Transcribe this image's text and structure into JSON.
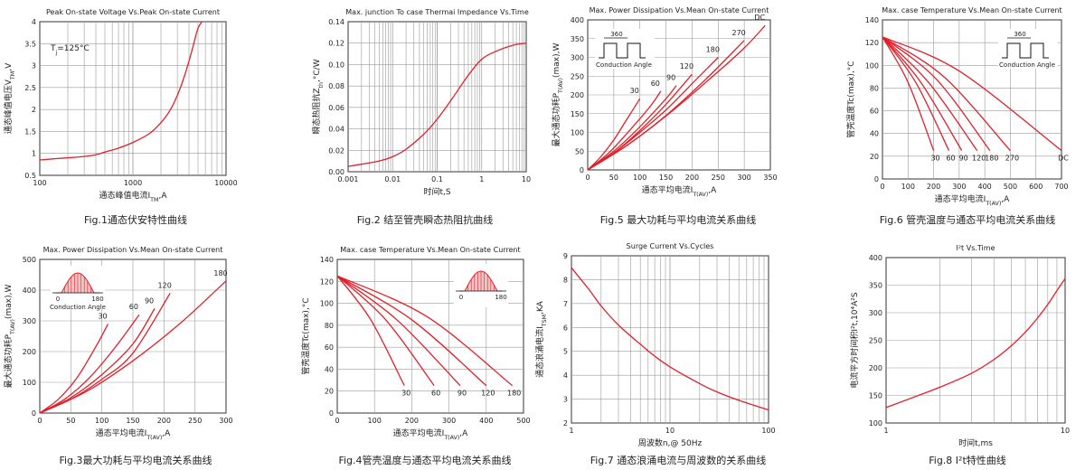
{
  "charts": [
    {
      "title": "Peak On-state Voltage Vs.Peak On-state Current",
      "caption": "Fig.1通态伏安特性曲线",
      "xlabel": "通态峰值电流I",
      "xlabel_sub": "TM",
      "xlabel_unit": ",A",
      "ylabel": "通态峰值电压V",
      "ylabel_sub": "TM",
      "ylabel_unit": ",V",
      "annotation": "T",
      "annotation_sub": "j",
      "annotation_rest": "=125°C",
      "xticks": [
        "100",
        "1000",
        "10000"
      ],
      "yticks": [
        "0.5",
        "1",
        "1.5",
        "2",
        "2.5",
        "3",
        "3.5",
        "4"
      ]
    },
    {
      "title": "Max. junction To case Thermai Impedance Vs.Time",
      "caption": "Fig.2 结至管壳瞬态热阻抗曲线",
      "xlabel": "时间t,S",
      "ylabel": "瞬态热阻抗Z",
      "ylabel_sub": "th",
      "ylabel_unit": ",°C/W",
      "xticks": [
        "0.001",
        "0.01",
        "0.1",
        "1",
        "10"
      ],
      "yticks": [
        "0.00",
        "0.02",
        "0.04",
        "0.06",
        "0.08",
        "0.10",
        "0.12",
        "0.14"
      ]
    },
    {
      "title": "Max. Power Dissipation Vs.Mean On-state Current",
      "caption": "Fig.5 最大功耗与平均电流关系曲线",
      "xlabel": "通态平均电流I",
      "xlabel_sub": "T(AV)",
      "xlabel_unit": ",A",
      "ylabel": "最大通态功耗P",
      "ylabel_sub": "T(AV)",
      "ylabel_unit": "(max),W",
      "inset_label": "360",
      "inset_caption": "Conduction Angle",
      "xticks": [
        "0",
        "50",
        "100",
        "150",
        "200",
        "250",
        "300",
        "350"
      ],
      "yticks": [
        "0",
        "50",
        "100",
        "150",
        "200",
        "250",
        "300",
        "350",
        "400"
      ],
      "curve_labels": [
        "30",
        "60",
        "90",
        "120",
        "180",
        "270",
        "DC"
      ]
    },
    {
      "title": "Max. case Temperature Vs.Mean On-state Current",
      "caption": "Fig.6 管壳温度与通态平均电流关系曲线",
      "xlabel": "通态平均电流I",
      "xlabel_sub": "T(AV)",
      "xlabel_unit": ",A",
      "ylabel": "管壳温度Tc(max),°C",
      "inset_label": "360",
      "inset_caption": "Conduction Angle",
      "xticks": [
        "0",
        "100",
        "200",
        "300",
        "400",
        "500",
        "600",
        "700"
      ],
      "yticks": [
        "0",
        "20",
        "40",
        "60",
        "80",
        "100",
        "120",
        "140"
      ],
      "curve_labels": [
        "30",
        "60",
        "90",
        "120",
        "180",
        "270",
        "DC"
      ]
    },
    {
      "title": "Max. Power Dissipation Vs.Mean On-state Current",
      "caption": "Fig.3最大功耗与平均电流关系曲线",
      "xlabel": "通态平均电流I",
      "xlabel_sub": "T(AV)",
      "xlabel_unit": ",A",
      "ylabel": "最大通态功耗P",
      "ylabel_sub": "T(AV)",
      "ylabel_unit": "(max),W",
      "inset_label_left": "0",
      "inset_label_right": "180",
      "inset_caption": "Conduction Angle",
      "xticks": [
        "0",
        "50",
        "100",
        "150",
        "200",
        "250",
        "300"
      ],
      "yticks": [
        "0",
        "100",
        "200",
        "300",
        "400",
        "500"
      ],
      "curve_labels": [
        "30",
        "60",
        "90",
        "120",
        "180"
      ]
    },
    {
      "title": "Max. case Temperature Vs.Mean On-state Current",
      "caption": "Fig.4管壳温度与通态平均电流关系曲线",
      "xlabel": "通态平均电流I",
      "xlabel_sub": "T(AV)",
      "xlabel_unit": ",A",
      "ylabel": "管壳温度Tc(max),°C",
      "inset_label_left": "0",
      "inset_label_right": "180",
      "xticks": [
        "0",
        "100",
        "200",
        "300",
        "400",
        "500"
      ],
      "yticks": [
        "0",
        "20",
        "40",
        "60",
        "80",
        "100",
        "120",
        "140"
      ],
      "curve_labels": [
        "30",
        "60",
        "90",
        "120",
        "180"
      ]
    },
    {
      "title": "Surge Current Vs.Cycles",
      "caption": "Fig.7 通态浪涌电流与周波数的关系曲线",
      "xlabel": "周波数n,@ 50Hz",
      "ylabel": "通态浪涌电流I",
      "ylabel_sub": "TSM",
      "ylabel_unit": ",KA",
      "xticks": [
        "1",
        "10",
        "100"
      ],
      "yticks": [
        "2",
        "3",
        "4",
        "5",
        "6",
        "7",
        "8",
        "9"
      ]
    },
    {
      "title": "I²t  Vs.Time",
      "caption": "Fig.8 I²t特性曲线",
      "xlabel": "时间t,ms",
      "ylabel": "电流平方时间积I²t,10⁴A²S",
      "xticks": [
        "1",
        "10"
      ],
      "yticks": [
        "100",
        "150",
        "200",
        "250",
        "300",
        "350",
        "400"
      ]
    }
  ],
  "colors": {
    "curve": "#e0202a",
    "grid": "#9a9a9a",
    "axis": "#333333",
    "text": "#222222"
  },
  "chart_data": [
    {
      "type": "line",
      "title": "Peak On-state Voltage Vs.Peak On-state Current",
      "xlabel": "通态峰值电流ITM,A",
      "ylabel": "通态峰值电压VTM,V",
      "xscale": "log",
      "xlim": [
        100,
        10000
      ],
      "ylim": [
        0.5,
        4
      ],
      "grid": true,
      "series": [
        {
          "x": [
            100,
            150,
            200,
            300,
            400,
            500,
            700,
            1000,
            1500,
            2000,
            2500,
            3000,
            3500,
            4000,
            4500,
            5000,
            5500
          ],
          "y": [
            0.85,
            0.88,
            0.9,
            0.93,
            0.97,
            1.03,
            1.12,
            1.25,
            1.45,
            1.7,
            1.98,
            2.32,
            2.7,
            3.1,
            3.5,
            3.85,
            4.0
          ]
        }
      ]
    },
    {
      "type": "line",
      "title": "Max. junction To case Thermai Impedance Vs.Time",
      "xlabel": "时间t,S",
      "ylabel": "瞬态热阻抗Zth,°C/W",
      "xscale": "log",
      "xlim": [
        0.001,
        10
      ],
      "ylim": [
        0,
        0.14
      ],
      "grid": true,
      "series": [
        {
          "x": [
            0.001,
            0.002,
            0.005,
            0.01,
            0.02,
            0.05,
            0.1,
            0.2,
            0.5,
            1,
            2,
            5,
            10
          ],
          "y": [
            0.005,
            0.007,
            0.01,
            0.014,
            0.021,
            0.035,
            0.049,
            0.066,
            0.09,
            0.105,
            0.112,
            0.118,
            0.12
          ]
        }
      ]
    },
    {
      "type": "line",
      "title": "Max. Power Dissipation Vs.Mean On-state Current",
      "xlabel": "通态平均电流IT(AV),A",
      "ylabel": "最大通态功耗PT(AV)(max),W",
      "xlim": [
        0,
        350
      ],
      "ylim": [
        0,
        400
      ],
      "grid": true,
      "series": [
        {
          "name": "30",
          "x": [
            0,
            25,
            50,
            75,
            100
          ],
          "y": [
            0,
            35,
            80,
            135,
            190
          ]
        },
        {
          "name": "60",
          "x": [
            0,
            40,
            80,
            120,
            140
          ],
          "y": [
            0,
            45,
            105,
            170,
            210
          ]
        },
        {
          "name": "90",
          "x": [
            0,
            50,
            100,
            150,
            170
          ],
          "y": [
            0,
            50,
            115,
            190,
            225
          ]
        },
        {
          "name": "120",
          "x": [
            0,
            50,
            100,
            150,
            200
          ],
          "y": [
            0,
            45,
            105,
            175,
            255
          ]
        },
        {
          "name": "180",
          "x": [
            0,
            50,
            100,
            150,
            200,
            250
          ],
          "y": [
            0,
            45,
            100,
            160,
            230,
            300
          ]
        },
        {
          "name": "270",
          "x": [
            0,
            75,
            150,
            225,
            300
          ],
          "y": [
            0,
            65,
            145,
            240,
            345
          ]
        },
        {
          "name": "DC",
          "x": [
            0,
            80,
            160,
            240,
            300,
            340
          ],
          "y": [
            0,
            70,
            155,
            250,
            325,
            385
          ]
        }
      ]
    },
    {
      "type": "line",
      "title": "Max. case Temperature Vs.Mean On-state Current",
      "xlabel": "通态平均电流IT(AV),A",
      "ylabel": "管壳温度Tc(max),°C",
      "xlim": [
        0,
        700
      ],
      "ylim": [
        0,
        140
      ],
      "grid": true,
      "series": [
        {
          "name": "30",
          "x": [
            0,
            100,
            200
          ],
          "y": [
            125,
            85,
            25
          ]
        },
        {
          "name": "60",
          "x": [
            0,
            130,
            260
          ],
          "y": [
            125,
            85,
            25
          ]
        },
        {
          "name": "90",
          "x": [
            0,
            150,
            310
          ],
          "y": [
            125,
            85,
            25
          ]
        },
        {
          "name": "120",
          "x": [
            0,
            180,
            370
          ],
          "y": [
            125,
            85,
            25
          ]
        },
        {
          "name": "180",
          "x": [
            0,
            210,
            420
          ],
          "y": [
            125,
            88,
            25
          ]
        },
        {
          "name": "270",
          "x": [
            0,
            240,
            500
          ],
          "y": [
            125,
            90,
            25
          ]
        },
        {
          "name": "DC",
          "x": [
            0,
            300,
            700
          ],
          "y": [
            125,
            95,
            25
          ]
        }
      ]
    },
    {
      "type": "line",
      "title": "Max. Power Dissipation Vs.Mean On-state Current",
      "xlabel": "通态平均电流IT(AV),A",
      "ylabel": "最大通态功耗PT(AV)(max),W",
      "xlim": [
        0,
        300
      ],
      "ylim": [
        0,
        500
      ],
      "grid": true,
      "series": [
        {
          "name": "30",
          "x": [
            0,
            30,
            60,
            90,
            110
          ],
          "y": [
            0,
            45,
            115,
            215,
            290
          ]
        },
        {
          "name": "60",
          "x": [
            0,
            40,
            80,
            120,
            160
          ],
          "y": [
            0,
            45,
            115,
            210,
            320
          ]
        },
        {
          "name": "90",
          "x": [
            0,
            50,
            100,
            150,
            185
          ],
          "y": [
            0,
            50,
            125,
            225,
            340
          ]
        },
        {
          "name": "120",
          "x": [
            0,
            50,
            100,
            150,
            210
          ],
          "y": [
            0,
            45,
            110,
            195,
            390
          ]
        },
        {
          "name": "180",
          "x": [
            0,
            75,
            150,
            225,
            300
          ],
          "y": [
            0,
            70,
            170,
            290,
            430
          ]
        }
      ]
    },
    {
      "type": "line",
      "title": "Max. case Temperature Vs.Mean On-state Current",
      "xlabel": "通态平均电流IT(AV),A",
      "ylabel": "管壳温度Tc(max),°C",
      "xlim": [
        0,
        500
      ],
      "ylim": [
        0,
        140
      ],
      "grid": true,
      "series": [
        {
          "name": "30",
          "x": [
            0,
            90,
            180
          ],
          "y": [
            125,
            85,
            25
          ]
        },
        {
          "name": "60",
          "x": [
            0,
            130,
            260
          ],
          "y": [
            125,
            85,
            25
          ]
        },
        {
          "name": "90",
          "x": [
            0,
            160,
            330
          ],
          "y": [
            125,
            85,
            25
          ]
        },
        {
          "name": "120",
          "x": [
            0,
            200,
            400
          ],
          "y": [
            125,
            85,
            25
          ]
        },
        {
          "name": "180",
          "x": [
            0,
            240,
            470
          ],
          "y": [
            125,
            88,
            25
          ]
        }
      ]
    },
    {
      "type": "line",
      "title": "Surge Current Vs.Cycles",
      "xlabel": "周波数n,@ 50Hz",
      "ylabel": "通态浪涌电流ITSM,KA",
      "xscale": "log",
      "xlim": [
        1,
        100
      ],
      "ylim": [
        2,
        9
      ],
      "grid": true,
      "series": [
        {
          "x": [
            1,
            1.5,
            2,
            3,
            5,
            7,
            10,
            20,
            30,
            50,
            70,
            100
          ],
          "y": [
            8.5,
            7.6,
            6.9,
            6.1,
            5.3,
            4.8,
            4.35,
            3.65,
            3.3,
            2.95,
            2.75,
            2.55
          ]
        }
      ]
    },
    {
      "type": "line",
      "title": "I²t  Vs.Time",
      "xlabel": "时间t,ms",
      "ylabel": "电流平方时间积I²t,10⁴A²S",
      "xscale": "log",
      "xlim": [
        1,
        10
      ],
      "ylim": [
        100,
        400
      ],
      "grid": true,
      "series": [
        {
          "x": [
            1,
            2,
            3,
            4,
            5,
            6,
            7,
            8,
            9,
            10
          ],
          "y": [
            128,
            165,
            190,
            215,
            240,
            265,
            290,
            315,
            340,
            362
          ]
        }
      ]
    }
  ]
}
